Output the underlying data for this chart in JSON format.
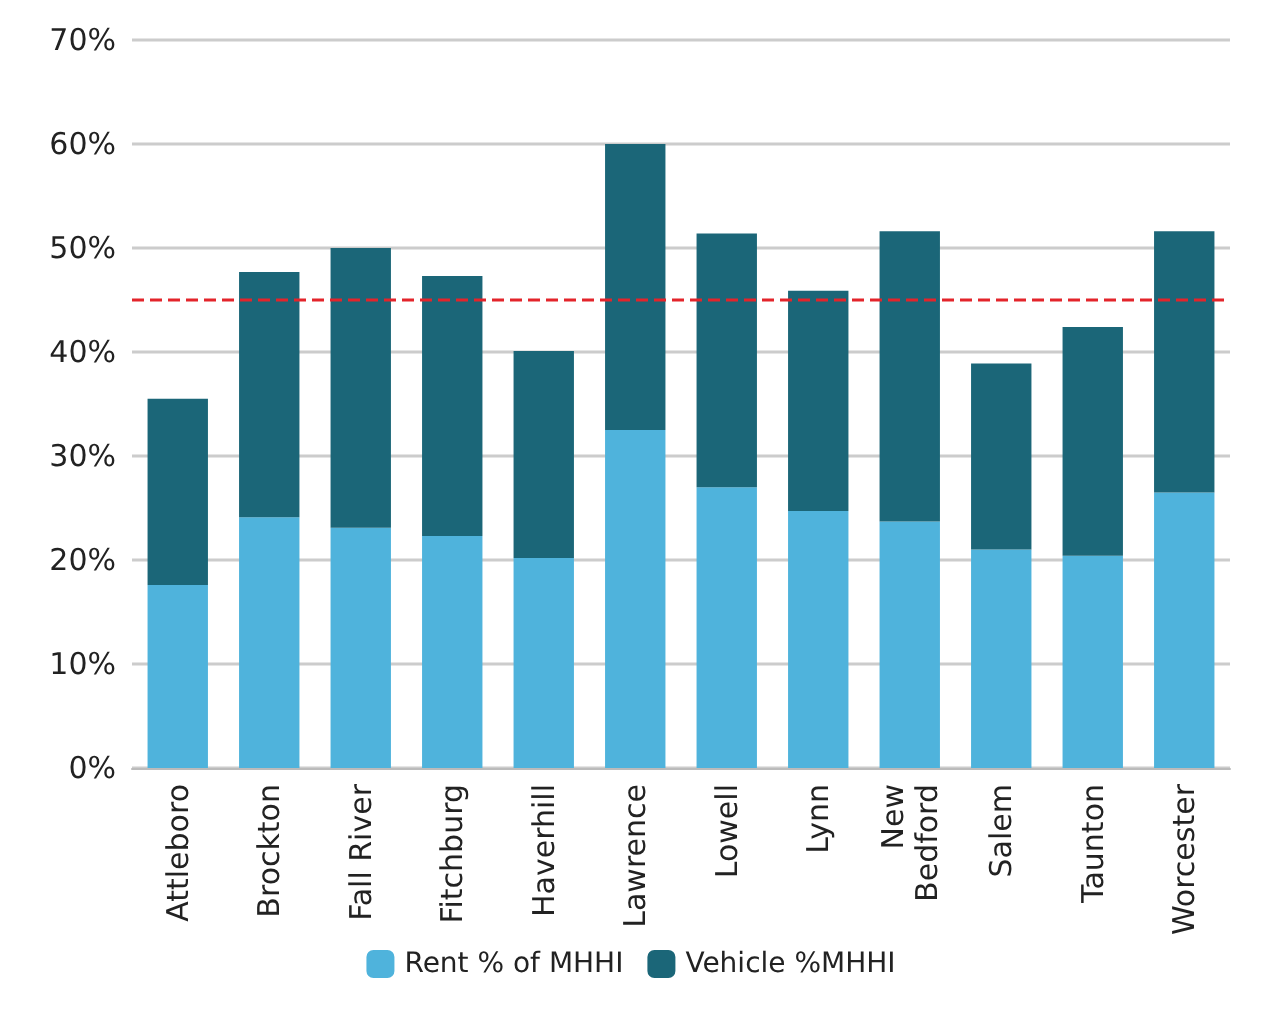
{
  "chart_data": {
    "type": "bar",
    "stacked": true,
    "categories": [
      "Attleboro",
      "Brockton",
      "Fall River",
      "Fitchburg",
      "Haverhill",
      "Lawrence",
      "Lowell",
      "Lynn",
      "New\nBedford",
      "Salem",
      "Taunton",
      "Worcester"
    ],
    "series": [
      {
        "name": "Rent % of MHHI",
        "color": "#4fb3dc",
        "values": [
          17.6,
          24.1,
          23.1,
          22.3,
          20.2,
          32.5,
          27.0,
          24.7,
          23.7,
          21.0,
          20.4,
          26.5
        ]
      },
      {
        "name": "Vehicle %MHHI",
        "color": "#1b6678",
        "values": [
          17.9,
          23.6,
          26.9,
          25.0,
          19.9,
          27.5,
          24.4,
          21.2,
          27.9,
          17.9,
          22.0,
          25.1
        ]
      }
    ],
    "ylim": [
      0,
      70
    ],
    "yticks": [
      {
        "value": 0,
        "label": "0%"
      },
      {
        "value": 10,
        "label": "10%"
      },
      {
        "value": 20,
        "label": "20%"
      },
      {
        "value": 30,
        "label": "30%"
      },
      {
        "value": 40,
        "label": "40%"
      },
      {
        "value": 50,
        "label": "50%"
      },
      {
        "value": 60,
        "label": "60%"
      },
      {
        "value": 70,
        "label": "70%"
      }
    ],
    "ref_lines": [
      {
        "axis": "y",
        "value": 45,
        "color": "#e3242b",
        "line_style": "dashed"
      }
    ],
    "grid": "y",
    "legend": "bottom"
  }
}
